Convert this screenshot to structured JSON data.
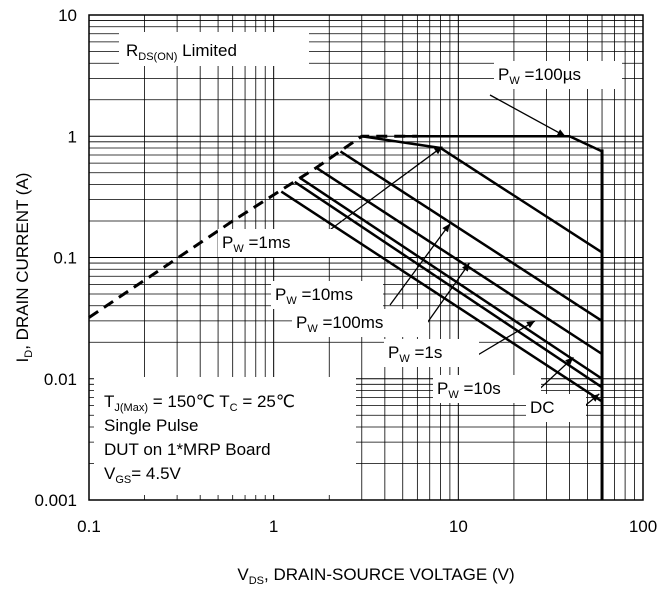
{
  "chart_data": {
    "type": "line",
    "title": "",
    "x_scale": "log",
    "y_scale": "log",
    "xlim": [
      0.1,
      100
    ],
    "ylim": [
      0.001,
      10
    ],
    "grid": true,
    "x_ticks": [
      {
        "value": 0.1,
        "label": "0.1"
      },
      {
        "value": 1,
        "label": "1"
      },
      {
        "value": 10,
        "label": "10"
      },
      {
        "value": 100,
        "label": "100"
      }
    ],
    "y_ticks": [
      {
        "value": 0.001,
        "label": "0.001"
      },
      {
        "value": 0.01,
        "label": "0.01"
      },
      {
        "value": 0.1,
        "label": "0.1"
      },
      {
        "value": 1,
        "label": "1"
      },
      {
        "value": 10,
        "label": "10"
      }
    ],
    "xlabel": {
      "main": "V",
      "sub": "DS",
      "rest": ", DRAIN-SOURCE VOLTAGE (V)"
    },
    "ylabel": {
      "main": "I",
      "sub": "D",
      "rest": ", DRAIN CURRENT (A)"
    },
    "rds_limit": {
      "label_main": "R",
      "label_sub": "DS(ON)",
      "label_rest": " Limited",
      "points": [
        [
          0.1,
          0.032
        ],
        [
          0.6,
          0.2
        ],
        [
          1.7,
          0.55
        ],
        [
          3,
          1.0
        ],
        [
          6,
          1.0
        ]
      ]
    },
    "vds_max": 60,
    "series": [
      {
        "label_main": "P",
        "label_sub": "W",
        "label_rest": " =100µs",
        "points": [
          [
            5,
            1.0
          ],
          [
            40,
            1.0
          ],
          [
            60,
            0.75
          ]
        ],
        "arrow_to": [
          38,
          1.0
        ]
      },
      {
        "label_main": "P",
        "label_sub": "W",
        "label_rest": " =1ms",
        "points": [
          [
            3,
            1.0
          ],
          [
            8,
            0.8
          ],
          [
            60,
            0.11
          ]
        ],
        "arrow_to": [
          8.2,
          0.82
        ]
      },
      {
        "label_main": "P",
        "label_sub": "W",
        "label_rest": " =10ms",
        "points": [
          [
            2.3,
            0.75
          ],
          [
            60,
            0.03
          ]
        ],
        "arrow_to": [
          9,
          0.19
        ]
      },
      {
        "label_main": "P",
        "label_sub": "W",
        "label_rest": " =100ms",
        "points": [
          [
            1.7,
            0.55
          ],
          [
            60,
            0.016
          ]
        ],
        "arrow_to": [
          11.5,
          0.09
        ]
      },
      {
        "label_main": "P",
        "label_sub": "W",
        "label_rest": " =1s",
        "points": [
          [
            1.4,
            0.45
          ],
          [
            60,
            0.01
          ]
        ],
        "arrow_to": [
          26,
          0.03
        ]
      },
      {
        "label_main": "P",
        "label_sub": "W",
        "label_rest": " =10s",
        "points": [
          [
            1.3,
            0.42
          ],
          [
            60,
            0.0085
          ]
        ],
        "arrow_to": [
          42,
          0.015
        ]
      },
      {
        "label_main": "DC",
        "label_sub": "",
        "label_rest": "",
        "points": [
          [
            1.1,
            0.35
          ],
          [
            60,
            0.0065
          ]
        ],
        "arrow_to": [
          58,
          0.0075
        ]
      }
    ],
    "conditions": [
      {
        "parts": [
          {
            "t": "T",
            "sub": false
          },
          {
            "t": "J(Max)",
            "sub": true
          },
          {
            "t": " = 150℃  T",
            "sub": false
          },
          {
            "t": "C",
            "sub": true
          },
          {
            "t": " = 25℃",
            "sub": false
          }
        ]
      },
      {
        "parts": [
          {
            "t": "Single Pulse",
            "sub": false
          }
        ]
      },
      {
        "parts": [
          {
            "t": "DUT on 1*MRP Board",
            "sub": false
          }
        ]
      },
      {
        "parts": [
          {
            "t": "V",
            "sub": false
          },
          {
            "t": "GS",
            "sub": true
          },
          {
            "t": "= 4.5V",
            "sub": false
          }
        ]
      }
    ]
  }
}
